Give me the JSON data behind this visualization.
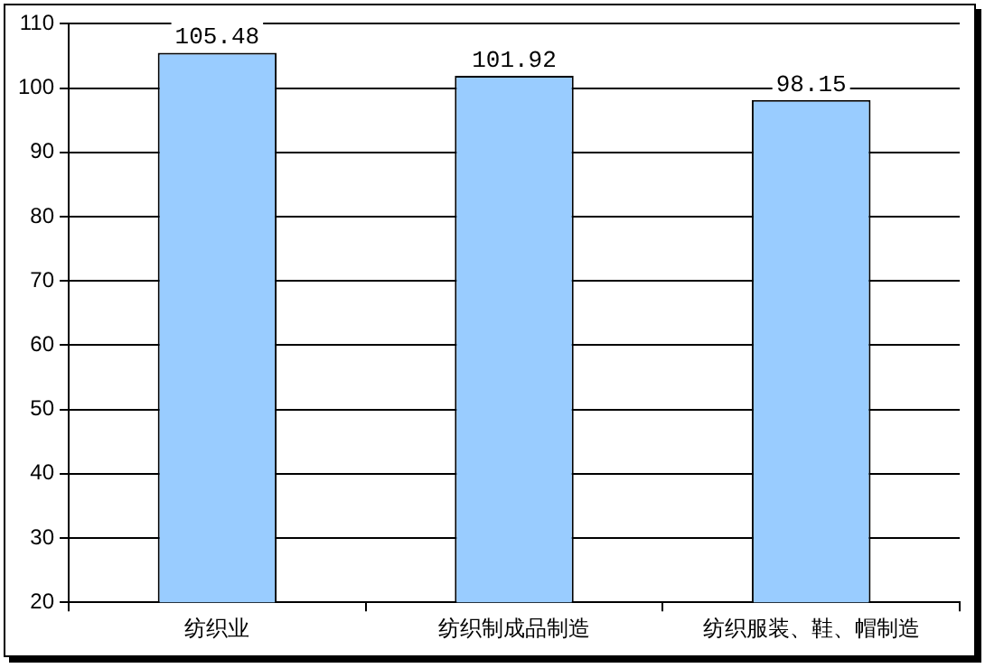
{
  "chart_data": {
    "type": "bar",
    "categories": [
      "纺织业",
      "纺织制成品制造",
      "纺织服装、鞋、帽制造"
    ],
    "values": [
      105.48,
      101.92,
      98.15
    ],
    "color": "#99ccff",
    "ylim": [
      20,
      110
    ],
    "yticks": [
      20,
      30,
      40,
      50,
      60,
      70,
      80,
      90,
      100,
      110
    ],
    "grid": "y",
    "data_labels": true,
    "legend": false
  }
}
